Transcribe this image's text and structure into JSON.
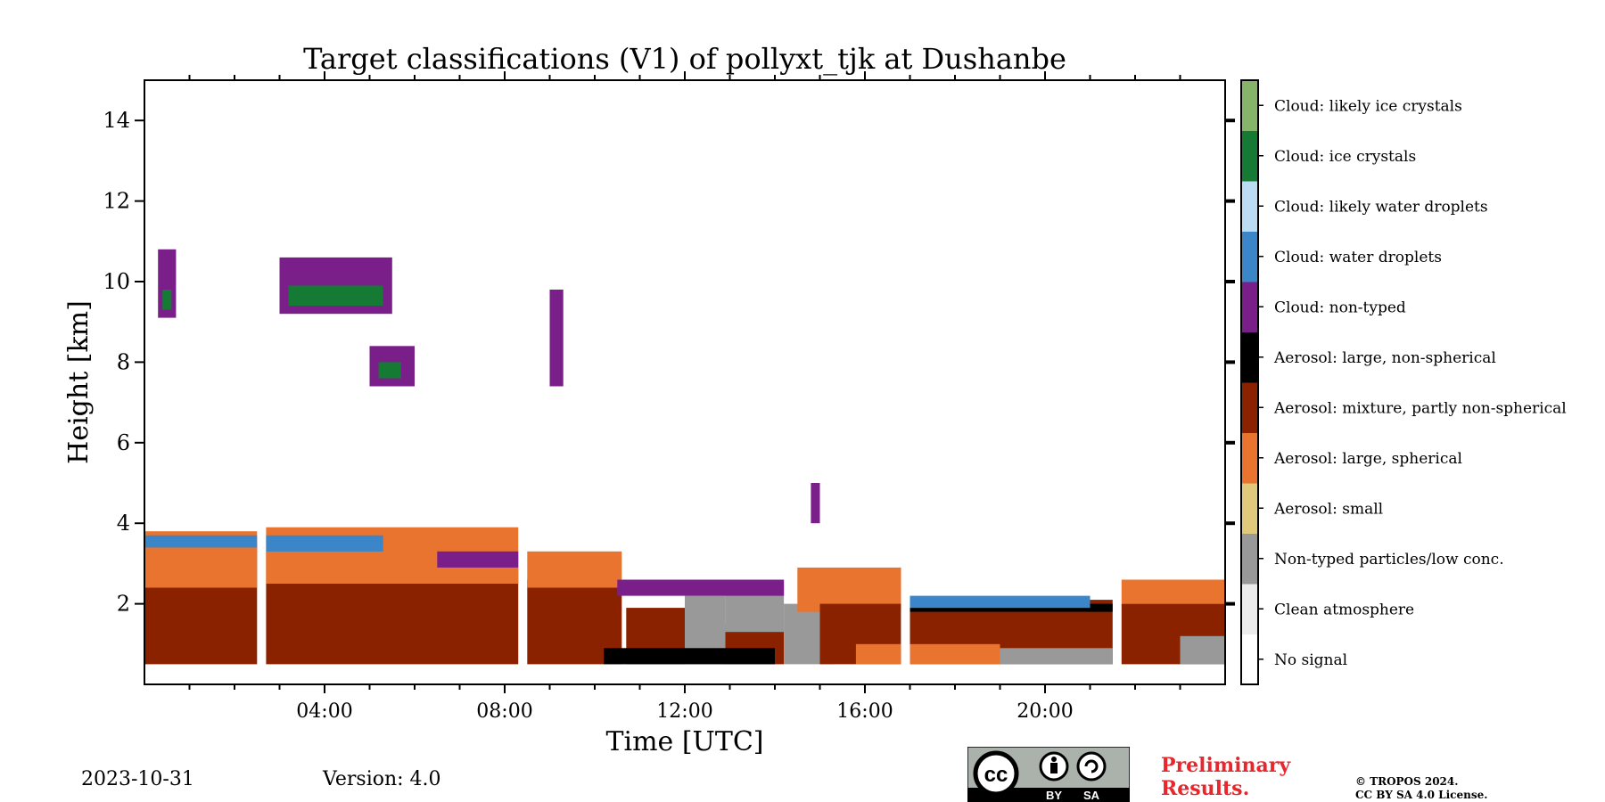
{
  "chart_data": {
    "type": "heatmap",
    "title": "Target classifications (V1) of pollyxt_tjk at Dushanbe",
    "xlabel": "Time [UTC]",
    "ylabel": "Height [km]",
    "xlim": [
      "00:00",
      "24:00"
    ],
    "ylim": [
      0,
      15
    ],
    "x_ticks": [
      "04:00",
      "08:00",
      "12:00",
      "16:00",
      "20:00"
    ],
    "y_ticks": [
      2,
      4,
      6,
      8,
      10,
      12,
      14
    ],
    "legend_position": "right colorbar",
    "classes": [
      {
        "label": "No signal",
        "color": "#ffffff"
      },
      {
        "label": "Clean atmosphere",
        "color": "#ececec"
      },
      {
        "label": "Non-typed particles/low conc.",
        "color": "#999999"
      },
      {
        "label": "Aerosol: small",
        "color": "#e0c97a"
      },
      {
        "label": "Aerosol: large, spherical",
        "color": "#e8742f"
      },
      {
        "label": "Aerosol: mixture, partly non-spherical",
        "color": "#8a2200"
      },
      {
        "label": "Aerosol: large, non-spherical",
        "color": "#000000"
      },
      {
        "label": "Cloud: non-typed",
        "color": "#7a1f8a"
      },
      {
        "label": "Cloud: water droplets",
        "color": "#3a86c8"
      },
      {
        "label": "Cloud: likely water droplets",
        "color": "#bcdcf4"
      },
      {
        "label": "Cloud: ice crystals",
        "color": "#157a34"
      },
      {
        "label": "Cloud: likely ice crystals",
        "color": "#85b46a"
      }
    ],
    "regions": [
      {
        "cls": 5,
        "t0": 0.0,
        "t1": 2.5,
        "h0": 0.5,
        "h1": 3.5
      },
      {
        "cls": 4,
        "t0": 0.0,
        "t1": 2.5,
        "h0": 2.4,
        "h1": 3.8
      },
      {
        "cls": 5,
        "t0": 2.7,
        "t1": 8.3,
        "h0": 0.5,
        "h1": 3.3
      },
      {
        "cls": 4,
        "t0": 2.7,
        "t1": 8.3,
        "h0": 2.5,
        "h1": 3.9
      },
      {
        "cls": 5,
        "t0": 8.5,
        "t1": 10.6,
        "h0": 0.5,
        "h1": 2.6
      },
      {
        "cls": 4,
        "t0": 8.5,
        "t1": 10.6,
        "h0": 2.4,
        "h1": 3.3
      },
      {
        "cls": 5,
        "t0": 10.7,
        "t1": 12.0,
        "h0": 0.5,
        "h1": 1.9
      },
      {
        "cls": 2,
        "t0": 12.0,
        "t1": 12.9,
        "h0": 0.5,
        "h1": 2.2
      },
      {
        "cls": 5,
        "t0": 12.9,
        "t1": 14.2,
        "h0": 0.5,
        "h1": 1.5
      },
      {
        "cls": 2,
        "t0": 12.9,
        "t1": 14.2,
        "h0": 1.3,
        "h1": 2.5
      },
      {
        "cls": 6,
        "t0": 10.2,
        "t1": 14.0,
        "h0": 0.5,
        "h1": 0.9
      },
      {
        "cls": 2,
        "t0": 14.2,
        "t1": 15.3,
        "h0": 0.5,
        "h1": 2.0
      },
      {
        "cls": 4,
        "t0": 14.5,
        "t1": 16.8,
        "h0": 1.8,
        "h1": 2.9
      },
      {
        "cls": 5,
        "t0": 15.0,
        "t1": 16.8,
        "h0": 0.5,
        "h1": 2.0
      },
      {
        "cls": 4,
        "t0": 15.8,
        "t1": 16.8,
        "h0": 0.5,
        "h1": 1.0
      },
      {
        "cls": 5,
        "t0": 17.0,
        "t1": 21.5,
        "h0": 0.5,
        "h1": 2.1
      },
      {
        "cls": 6,
        "t0": 17.0,
        "t1": 21.5,
        "h0": 1.8,
        "h1": 2.0
      },
      {
        "cls": 4,
        "t0": 17.0,
        "t1": 19.0,
        "h0": 0.5,
        "h1": 1.0
      },
      {
        "cls": 2,
        "t0": 19.0,
        "t1": 21.5,
        "h0": 0.5,
        "h1": 0.9
      },
      {
        "cls": 4,
        "t0": 21.7,
        "t1": 24.0,
        "h0": 2.0,
        "h1": 2.6
      },
      {
        "cls": 5,
        "t0": 21.7,
        "t1": 24.0,
        "h0": 0.5,
        "h1": 2.0
      },
      {
        "cls": 2,
        "t0": 23.0,
        "t1": 24.0,
        "h0": 0.5,
        "h1": 1.2
      },
      {
        "cls": 8,
        "t0": 2.7,
        "t1": 5.3,
        "h0": 3.3,
        "h1": 3.7
      },
      {
        "cls": 8,
        "t0": 0.0,
        "t1": 2.5,
        "h0": 3.4,
        "h1": 3.7
      },
      {
        "cls": 7,
        "t0": 6.5,
        "t1": 8.3,
        "h0": 2.9,
        "h1": 3.3
      },
      {
        "cls": 7,
        "t0": 10.5,
        "t1": 14.2,
        "h0": 2.2,
        "h1": 2.6
      },
      {
        "cls": 8,
        "t0": 17.0,
        "t1": 21.0,
        "h0": 1.9,
        "h1": 2.2
      },
      {
        "cls": 7,
        "t0": 0.3,
        "t1": 0.7,
        "h0": 9.1,
        "h1": 10.8
      },
      {
        "cls": 10,
        "t0": 0.4,
        "t1": 0.6,
        "h0": 9.3,
        "h1": 9.8
      },
      {
        "cls": 7,
        "t0": 3.0,
        "t1": 5.5,
        "h0": 9.2,
        "h1": 10.6
      },
      {
        "cls": 10,
        "t0": 3.2,
        "t1": 5.3,
        "h0": 9.4,
        "h1": 9.9
      },
      {
        "cls": 7,
        "t0": 5.0,
        "t1": 6.0,
        "h0": 7.4,
        "h1": 8.4
      },
      {
        "cls": 10,
        "t0": 5.2,
        "t1": 5.7,
        "h0": 7.6,
        "h1": 8.0
      },
      {
        "cls": 7,
        "t0": 9.0,
        "t1": 9.3,
        "h0": 7.4,
        "h1": 9.8
      },
      {
        "cls": 7,
        "t0": 14.8,
        "t1": 15.0,
        "h0": 4.0,
        "h1": 5.0
      }
    ]
  },
  "footer": {
    "date": "2023-10-31",
    "version": "Version: 4.0",
    "preliminary_line1": "Preliminary",
    "preliminary_line2": "Results.",
    "copyright_line1": "© TROPOS 2024.",
    "copyright_line2": "CC BY SA 4.0 License.",
    "badge_by": "BY",
    "badge_sa": "SA"
  }
}
